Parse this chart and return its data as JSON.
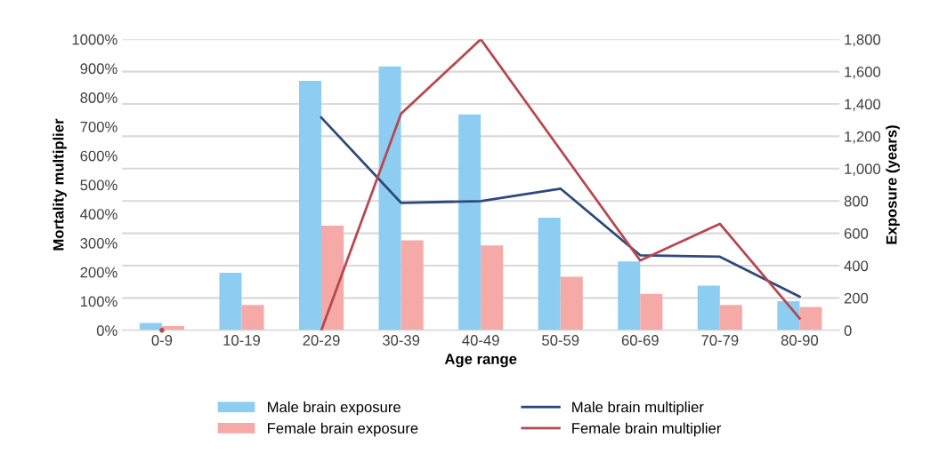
{
  "chart_data": {
    "type": "bar",
    "xlabel": "Age range",
    "ylabel": "Mortality multiplier",
    "y2label": "Exposure (years)",
    "categories": [
      "0-9",
      "10-19",
      "20-29",
      "30-39",
      "40-49",
      "50-59",
      "60-69",
      "70-79",
      "80-90"
    ],
    "series": [
      {
        "name": "Male brain exposure",
        "axis": "y2",
        "color": "#8ecdf2",
        "values": [
          45,
          356,
          1543,
          1632,
          1336,
          697,
          426,
          277,
          180
        ]
      },
      {
        "name": "Female brain exposure",
        "axis": "y2",
        "color": "#f5aaa8",
        "values": [
          27,
          157,
          647,
          556,
          525,
          331,
          225,
          157,
          145
        ]
      },
      {
        "name": "Male brain multiplier",
        "type": "line",
        "color": "#2e4a7c",
        "values": [
          null,
          null,
          731,
          438,
          444,
          487,
          258,
          253,
          116
        ]
      },
      {
        "name": "Female brain multiplier",
        "type": "line",
        "color": "#b8474f",
        "values": [
          0,
          null,
          0,
          744,
          1000,
          620,
          240,
          366,
          41
        ]
      }
    ],
    "ylim": [
      0,
      1000
    ],
    "yticks": [
      {
        "value": 0,
        "label": "0%"
      },
      {
        "value": 100,
        "label": "100%"
      },
      {
        "value": 200,
        "label": "200%"
      },
      {
        "value": 300,
        "label": "300%"
      },
      {
        "value": 400,
        "label": "400%"
      },
      {
        "value": 500,
        "label": "500%"
      },
      {
        "value": 600,
        "label": "600%"
      },
      {
        "value": 700,
        "label": "700%"
      },
      {
        "value": 800,
        "label": "800%"
      },
      {
        "value": 900,
        "label": "900%"
      },
      {
        "value": 1000,
        "label": "1000%"
      }
    ],
    "y2lim": [
      0,
      1800
    ],
    "y2ticks": [
      0,
      200,
      400,
      600,
      800,
      {
        "value": 1000,
        "label": "1,000"
      },
      {
        "value": 1200,
        "label": "1,200"
      },
      {
        "value": 1400,
        "label": "1,400"
      },
      {
        "value": 1600,
        "label": "1,600"
      },
      {
        "value": 1800,
        "label": "1,800"
      }
    ],
    "grid": "y",
    "legend": "bottom",
    "marker": "none",
    "line_style": "solid"
  }
}
